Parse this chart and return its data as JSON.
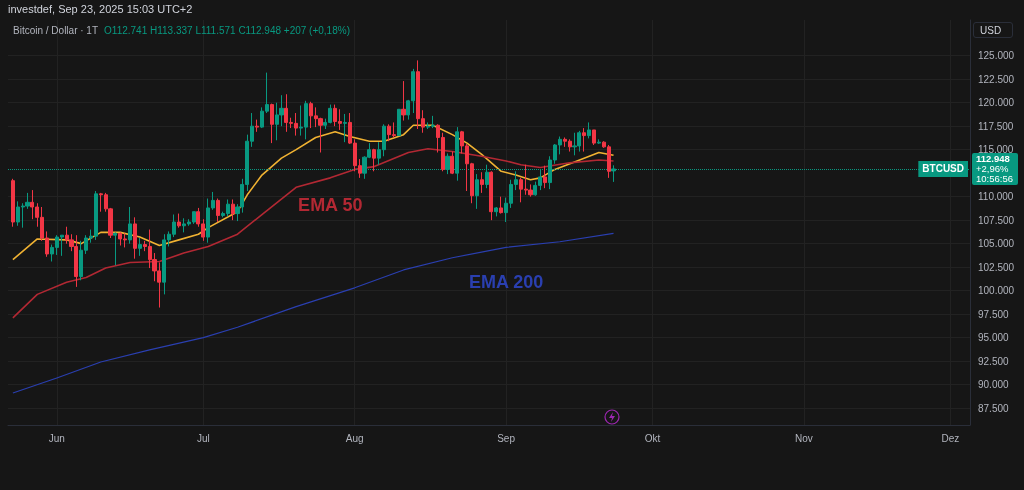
{
  "chart_data": {
    "type": "candlestick",
    "title": "Bitcoin / Dollar · 1T",
    "subtitle": "investdef, Sep 23, 2025 15:03 UTC+2",
    "ylabel": "USD",
    "annotations": [
      "O112.741 H113.337 L111.571 C112.948 +207 (+0,18%)",
      "112.948",
      "+2,96%",
      "10:56:56"
    ],
    "xlim": [
      "2025-05-22",
      "2025-12-05"
    ],
    "xticks": [
      {
        "value": "2025-06-01",
        "label": "Jun"
      },
      {
        "value": "2025-07-01",
        "label": "Jul"
      },
      {
        "value": "2025-08-01",
        "label": "Aug"
      },
      {
        "value": "2025-09-01",
        "label": "Sep"
      },
      {
        "value": "2025-10-01",
        "label": "Okt"
      },
      {
        "value": "2025-11-01",
        "label": "Nov"
      },
      {
        "value": "2025-12-01",
        "label": "Dez"
      }
    ],
    "ylim": [
      85700,
      128800
    ],
    "yticks": [
      {
        "value": 87500,
        "label": "87.500"
      },
      {
        "value": 90000,
        "label": "90.000"
      },
      {
        "value": 92500,
        "label": "92.500"
      },
      {
        "value": 95000,
        "label": "95.000"
      },
      {
        "value": 97500,
        "label": "97.500"
      },
      {
        "value": 100000,
        "label": "100.000"
      },
      {
        "value": 102500,
        "label": "102.500"
      },
      {
        "value": 105000,
        "label": "105.000"
      },
      {
        "value": 107500,
        "label": "107.500"
      },
      {
        "value": 110000,
        "label": "110.000"
      },
      {
        "value": 115000,
        "label": "115.000"
      },
      {
        "value": 117500,
        "label": "117.500"
      },
      {
        "value": 120000,
        "label": "120.000"
      },
      {
        "value": 122500,
        "label": "122.500"
      },
      {
        "value": 125000,
        "label": "125.000"
      }
    ],
    "grid": true,
    "legend": false,
    "ref_lines": [
      {
        "axis": "y",
        "value": 112948,
        "label": "BTCUSD",
        "color": "#089981",
        "line_style": "dotted"
      }
    ],
    "series": [
      {
        "x": [
          "2025-05-23",
          "2025-05-24",
          "2025-05-25",
          "2025-05-26",
          "2025-05-27",
          "2025-05-28",
          "2025-05-29",
          "2025-05-30",
          "2025-05-31",
          "2025-06-01",
          "2025-06-02",
          "2025-06-03",
          "2025-06-04",
          "2025-06-05",
          "2025-06-06",
          "2025-06-07",
          "2025-06-08",
          "2025-06-09",
          "2025-06-10",
          "2025-06-11",
          "2025-06-12",
          "2025-06-13",
          "2025-06-14",
          "2025-06-15",
          "2025-06-16",
          "2025-06-17",
          "2025-06-18",
          "2025-06-19",
          "2025-06-20",
          "2025-06-21",
          "2025-06-22",
          "2025-06-23",
          "2025-06-24",
          "2025-06-25",
          "2025-06-26",
          "2025-06-27",
          "2025-06-28",
          "2025-06-29",
          "2025-06-30",
          "2025-07-01",
          "2025-07-02",
          "2025-07-03",
          "2025-07-04",
          "2025-07-05",
          "2025-07-06",
          "2025-07-07",
          "2025-07-08",
          "2025-07-09",
          "2025-07-10",
          "2025-07-11",
          "2025-07-12",
          "2025-07-13",
          "2025-07-14",
          "2025-07-15",
          "2025-07-16",
          "2025-07-17",
          "2025-07-18",
          "2025-07-19",
          "2025-07-20",
          "2025-07-21",
          "2025-07-22",
          "2025-07-23",
          "2025-07-24",
          "2025-07-25",
          "2025-07-26",
          "2025-07-27",
          "2025-07-28",
          "2025-07-29",
          "2025-07-30",
          "2025-07-31",
          "2025-08-01",
          "2025-08-02",
          "2025-08-03",
          "2025-08-04",
          "2025-08-05",
          "2025-08-06",
          "2025-08-07",
          "2025-08-08",
          "2025-08-09",
          "2025-08-10",
          "2025-08-11",
          "2025-08-12",
          "2025-08-13",
          "2025-08-14",
          "2025-08-15",
          "2025-08-16",
          "2025-08-17",
          "2025-08-18",
          "2025-08-19",
          "2025-08-20",
          "2025-08-21",
          "2025-08-22",
          "2025-08-23",
          "2025-08-24",
          "2025-08-25",
          "2025-08-26",
          "2025-08-27",
          "2025-08-28",
          "2025-08-29",
          "2025-08-30",
          "2025-08-31",
          "2025-09-01",
          "2025-09-02",
          "2025-09-03",
          "2025-09-04",
          "2025-09-05",
          "2025-09-06",
          "2025-09-07",
          "2025-09-08",
          "2025-09-09",
          "2025-09-10",
          "2025-09-11",
          "2025-09-12",
          "2025-09-13",
          "2025-09-14",
          "2025-09-15",
          "2025-09-16",
          "2025-09-17",
          "2025-09-18",
          "2025-09-19",
          "2025-09-20",
          "2025-09-21",
          "2025-09-22",
          "2025-09-23"
        ],
        "ohlc": [
          [
            111700,
            111900,
            106800,
            107300
          ],
          [
            107300,
            109500,
            106900,
            108900
          ],
          [
            108900,
            109300,
            106700,
            109000
          ],
          [
            109000,
            110400,
            108700,
            109400
          ],
          [
            109400,
            110700,
            107600,
            108900
          ],
          [
            108900,
            109300,
            106800,
            107800
          ],
          [
            107800,
            108900,
            105300,
            105600
          ],
          [
            105600,
            106300,
            103600,
            103900
          ],
          [
            103900,
            104900,
            103100,
            104600
          ],
          [
            104600,
            105900,
            103800,
            105700
          ],
          [
            105700,
            105900,
            103700,
            105900
          ],
          [
            105900,
            106800,
            105000,
            105400
          ],
          [
            105400,
            106000,
            104200,
            104700
          ],
          [
            104700,
            105900,
            100400,
            101500
          ],
          [
            101500,
            105300,
            101100,
            104300
          ],
          [
            104300,
            105900,
            103900,
            105600
          ],
          [
            105600,
            106500,
            105100,
            105800
          ],
          [
            105800,
            110600,
            105400,
            110300
          ],
          [
            110300,
            110400,
            108400,
            110200
          ],
          [
            110200,
            110400,
            108400,
            108700
          ],
          [
            108700,
            108800,
            105600,
            105900
          ],
          [
            105900,
            106200,
            102700,
            106100
          ],
          [
            106100,
            106200,
            104800,
            105500
          ],
          [
            105500,
            106100,
            104600,
            105400
          ],
          [
            105400,
            108900,
            105000,
            107100
          ],
          [
            107100,
            107800,
            103400,
            104500
          ],
          [
            104500,
            105600,
            103700,
            104900
          ],
          [
            104900,
            105300,
            104200,
            104700
          ],
          [
            104700,
            106500,
            102400,
            103300
          ],
          [
            103300,
            104000,
            101000,
            102100
          ],
          [
            102100,
            103000,
            98200,
            100900
          ],
          [
            100900,
            106000,
            99600,
            105400
          ],
          [
            105400,
            106300,
            104700,
            106000
          ],
          [
            106000,
            108100,
            105700,
            107300
          ],
          [
            107300,
            108200,
            106700,
            106900
          ],
          [
            106900,
            107700,
            106200,
            107100
          ],
          [
            107100,
            107600,
            106900,
            107300
          ],
          [
            107300,
            108400,
            107100,
            108400
          ],
          [
            108400,
            108800,
            106800,
            107100
          ],
          [
            107100,
            107600,
            105300,
            105700
          ],
          [
            105700,
            109800,
            105100,
            108800
          ],
          [
            108800,
            110500,
            108600,
            109600
          ],
          [
            109600,
            109800,
            107300,
            108000
          ],
          [
            108000,
            108400,
            107800,
            108200
          ],
          [
            108200,
            109700,
            107900,
            109200
          ],
          [
            109200,
            109700,
            107500,
            108200
          ],
          [
            108200,
            109200,
            107400,
            108900
          ],
          [
            108900,
            111900,
            108300,
            111300
          ],
          [
            111300,
            116600,
            110600,
            115900
          ],
          [
            115900,
            118900,
            115300,
            117500
          ],
          [
            117500,
            118200,
            116900,
            117400
          ],
          [
            117400,
            119500,
            117300,
            119100
          ],
          [
            119100,
            123200,
            118900,
            119800
          ],
          [
            119800,
            119900,
            115700,
            117700
          ],
          [
            117700,
            120000,
            116000,
            118700
          ],
          [
            118700,
            120800,
            117500,
            119400
          ],
          [
            119400,
            120900,
            116900,
            117900
          ],
          [
            117900,
            118400,
            117300,
            117800
          ],
          [
            117800,
            118900,
            116500,
            117300
          ],
          [
            117300,
            119700,
            116500,
            117400
          ],
          [
            117400,
            120200,
            116100,
            119900
          ],
          [
            119900,
            120100,
            117300,
            118600
          ],
          [
            118600,
            119500,
            117400,
            118300
          ],
          [
            118300,
            118400,
            114700,
            117600
          ],
          [
            117600,
            118300,
            117200,
            117900
          ],
          [
            117900,
            119800,
            117800,
            119400
          ],
          [
            119400,
            119800,
            117500,
            118000
          ],
          [
            118000,
            119300,
            117100,
            117800
          ],
          [
            117800,
            118800,
            115800,
            117900
          ],
          [
            117900,
            118900,
            115600,
            115700
          ],
          [
            115700,
            116100,
            112700,
            113300
          ],
          [
            113300,
            114000,
            112000,
            112500
          ],
          [
            112500,
            114300,
            111900,
            114200
          ],
          [
            114200,
            115700,
            114100,
            115000
          ],
          [
            115000,
            115100,
            112700,
            114100
          ],
          [
            114100,
            115800,
            113400,
            115000
          ],
          [
            115000,
            117700,
            114300,
            117500
          ],
          [
            117500,
            117700,
            115900,
            116600
          ],
          [
            116600,
            117900,
            116300,
            116500
          ],
          [
            116500,
            119300,
            116500,
            119300
          ],
          [
            119300,
            122300,
            118100,
            118700
          ],
          [
            118700,
            120300,
            118200,
            120200
          ],
          [
            120200,
            123600,
            118900,
            123300
          ],
          [
            123300,
            124500,
            117200,
            118300
          ],
          [
            118300,
            119200,
            116800,
            117400
          ],
          [
            117400,
            117900,
            117200,
            117500
          ],
          [
            117500,
            118600,
            117300,
            117600
          ],
          [
            117600,
            117700,
            114700,
            116300
          ],
          [
            116300,
            116800,
            112700,
            112900
          ],
          [
            112900,
            114600,
            112400,
            114300
          ],
          [
            114300,
            114800,
            112400,
            112500
          ],
          [
            112500,
            117400,
            111700,
            116900
          ],
          [
            116900,
            117000,
            114600,
            115400
          ],
          [
            115400,
            115600,
            110600,
            113500
          ],
          [
            113500,
            113600,
            109300,
            110100
          ],
          [
            110100,
            112400,
            108700,
            111800
          ],
          [
            111800,
            112600,
            110400,
            111300
          ],
          [
            111300,
            113400,
            110900,
            112600
          ],
          [
            112600,
            112700,
            107500,
            108400
          ],
          [
            108400,
            108900,
            107900,
            108800
          ],
          [
            108800,
            110000,
            108200,
            108300
          ],
          [
            108300,
            109900,
            107300,
            109300
          ],
          [
            109300,
            111800,
            108800,
            111300
          ],
          [
            111300,
            112700,
            110700,
            111800
          ],
          [
            111800,
            112000,
            109400,
            110800
          ],
          [
            110800,
            113400,
            110200,
            110700
          ],
          [
            110700,
            111300,
            110000,
            110200
          ],
          [
            110200,
            111600,
            110100,
            111200
          ],
          [
            111200,
            112900,
            110700,
            112100
          ],
          [
            112100,
            113300,
            110900,
            111500
          ],
          [
            111500,
            114300,
            110800,
            113900
          ],
          [
            113900,
            115600,
            113500,
            115500
          ],
          [
            115500,
            116400,
            114500,
            116100
          ],
          [
            116100,
            116300,
            115300,
            115900
          ],
          [
            115900,
            116100,
            114800,
            115300
          ],
          [
            115300,
            116800,
            114400,
            115400
          ],
          [
            115400,
            117000,
            114800,
            116800
          ],
          [
            116800,
            117300,
            114800,
            116500
          ],
          [
            116500,
            117900,
            116200,
            117100
          ],
          [
            117100,
            117100,
            115500,
            115700
          ],
          [
            115700,
            116100,
            115600,
            115800
          ],
          [
            115800,
            115900,
            115200,
            115300
          ],
          [
            115300,
            115500,
            112000,
            112700
          ],
          [
            112741,
            113337,
            111571,
            112948
          ]
        ],
        "colors": [
          "#f23645",
          "#089981",
          "#089981",
          "#089981",
          "#f23645",
          "#f23645",
          "#f23645",
          "#f23645",
          "#089981",
          "#089981",
          "#089981",
          "#f23645",
          "#f23645",
          "#f23645",
          "#089981",
          "#089981",
          "#089981",
          "#089981",
          "#f23645",
          "#f23645",
          "#f23645",
          "#089981",
          "#f23645",
          "#f23645",
          "#089981",
          "#f23645",
          "#089981",
          "#f23645",
          "#f23645",
          "#f23645",
          "#f23645",
          "#089981",
          "#089981",
          "#089981",
          "#f23645",
          "#089981",
          "#089981",
          "#089981",
          "#f23645",
          "#f23645",
          "#089981",
          "#089981",
          "#f23645",
          "#089981",
          "#089981",
          "#f23645",
          "#089981",
          "#089981",
          "#089981",
          "#089981",
          "#f23645",
          "#089981",
          "#089981",
          "#f23645",
          "#089981",
          "#089981",
          "#f23645",
          "#f23645",
          "#f23645",
          "#089981",
          "#089981",
          "#f23645",
          "#f23645",
          "#f23645",
          "#089981",
          "#089981",
          "#f23645",
          "#f23645",
          "#089981",
          "#f23645",
          "#f23645",
          "#f23645",
          "#089981",
          "#089981",
          "#f23645",
          "#089981",
          "#089981",
          "#f23645",
          "#f23645",
          "#089981",
          "#f23645",
          "#089981",
          "#089981",
          "#f23645",
          "#f23645",
          "#089981",
          "#089981",
          "#f23645",
          "#f23645",
          "#089981",
          "#f23645",
          "#089981",
          "#f23645",
          "#f23645",
          "#f23645",
          "#089981",
          "#f23645",
          "#089981",
          "#f23645",
          "#089981",
          "#f23645",
          "#089981",
          "#089981",
          "#089981",
          "#f23645",
          "#f23645",
          "#f23645",
          "#089981",
          "#089981",
          "#f23645",
          "#089981",
          "#089981",
          "#089981",
          "#f23645",
          "#f23645",
          "#089981",
          "#089981",
          "#f23645",
          "#089981",
          "#f23645",
          "#089981",
          "#f23645",
          "#f23645",
          "#089981"
        ]
      },
      {
        "type": "line",
        "color": "#f0b232",
        "x": [
          "2025-05-23",
          "2025-05-28",
          "2025-06-03",
          "2025-06-06",
          "2025-06-10",
          "2025-06-14",
          "2025-06-18",
          "2025-06-22",
          "2025-06-26",
          "2025-06-30",
          "2025-07-02",
          "2025-07-08",
          "2025-07-10",
          "2025-07-13",
          "2025-07-17",
          "2025-07-20",
          "2025-07-24",
          "2025-07-28",
          "2025-07-31",
          "2025-08-04",
          "2025-08-07",
          "2025-08-11",
          "2025-08-13",
          "2025-08-17",
          "2025-08-21",
          "2025-08-24",
          "2025-08-27",
          "2025-08-31",
          "2025-09-03",
          "2025-09-06",
          "2025-09-08",
          "2025-09-11",
          "2025-09-15",
          "2025-09-20",
          "2025-09-23"
        ],
        "values": [
          103300,
          105500,
          105400,
          105000,
          106200,
          106200,
          105700,
          104800,
          105400,
          106000,
          106700,
          108400,
          110200,
          112300,
          114100,
          115000,
          116300,
          116900,
          116400,
          115900,
          115900,
          116600,
          117600,
          117600,
          116600,
          115700,
          114500,
          112700,
          112300,
          111800,
          112000,
          112900,
          113700,
          114700,
          114400
        ]
      },
      {
        "type": "line",
        "name": "EMA 50",
        "color": "#b22833",
        "x": [
          "2025-05-23",
          "2025-05-28",
          "2025-06-03",
          "2025-06-07",
          "2025-06-11",
          "2025-06-16",
          "2025-06-22",
          "2025-06-27",
          "2025-07-02",
          "2025-07-08",
          "2025-07-13",
          "2025-07-20",
          "2025-07-27",
          "2025-08-01",
          "2025-08-05",
          "2025-08-12",
          "2025-08-16",
          "2025-08-21",
          "2025-08-27",
          "2025-09-01",
          "2025-09-04",
          "2025-09-08",
          "2025-09-14",
          "2025-09-20",
          "2025-09-23"
        ],
        "values": [
          97100,
          99600,
          100900,
          101400,
          102400,
          103000,
          103100,
          104000,
          104700,
          106000,
          108100,
          111000,
          112000,
          112900,
          113200,
          114700,
          115100,
          114800,
          114300,
          113800,
          113400,
          113100,
          113600,
          113900,
          113800
        ]
      },
      {
        "type": "line",
        "name": "EMA 200",
        "color": "#2a3fb0",
        "x": [
          "2025-05-23",
          "2025-06-01",
          "2025-06-10",
          "2025-06-20",
          "2025-07-01",
          "2025-07-08",
          "2025-07-20",
          "2025-08-01",
          "2025-08-11",
          "2025-08-21",
          "2025-09-01",
          "2025-09-12",
          "2025-09-23"
        ],
        "values": [
          89100,
          90700,
          92400,
          93700,
          95000,
          96100,
          98300,
          100300,
          102200,
          103500,
          104600,
          105200,
          106100
        ]
      }
    ]
  }
}
